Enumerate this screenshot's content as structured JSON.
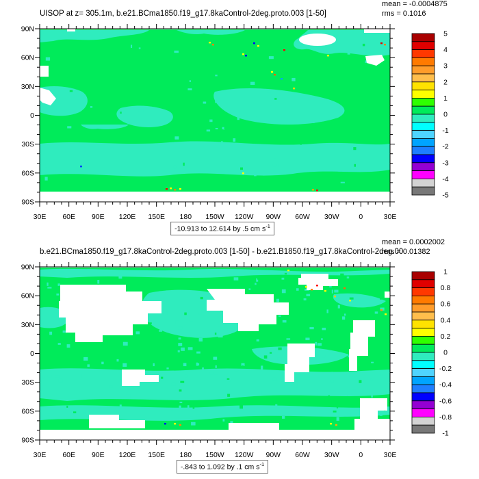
{
  "colors": {
    "ocean_green": "#00eb5a",
    "ocean_turquoise": "#2fecbe",
    "land_white": "#ffffff",
    "frame": "#000000",
    "colorbar": [
      "#a90000",
      "#e00000",
      "#ff3800",
      "#ff7a00",
      "#ff9c2a",
      "#ffbe4c",
      "#ffe200",
      "#ffff00",
      "#2fff00",
      "#00eb5a",
      "#2fecbe",
      "#00ffff",
      "#4fd4ff",
      "#00a4ff",
      "#1e7eff",
      "#0000ff",
      "#9400d3",
      "#ff00ff",
      "#d3d3d3",
      "#787878"
    ]
  },
  "axes": {
    "x_tick_labels": [
      "30E",
      "60E",
      "90E",
      "120E",
      "150E",
      "180",
      "150W",
      "120W",
      "90W",
      "60W",
      "30W",
      "0",
      "30E"
    ],
    "y_tick_labels": [
      "90N",
      "60N",
      "30N",
      "0",
      "30S",
      "60S",
      "90S"
    ]
  },
  "panels": [
    {
      "title": "UISOP at z= 305.1m, b.e21.BCma1850.f19_g17.8kaControl-2deg.proto.003 [1-50]",
      "mean_label": "mean = -0.0004875",
      "rms_label": "rms = 0.1016",
      "caption_text": "-10.913 to 12.614 by .5 cm s",
      "caption_exponent": "-1",
      "colorbar_tick_labels": [
        "5",
        "4",
        "3",
        "2",
        "1",
        "0",
        "-1",
        "-2",
        "-3",
        "-4",
        "-5"
      ]
    },
    {
      "title": "b.e21.BCma1850.f19_g17.8kaControl-2deg.proto.003 [1-50] - b.e21.B1850.f19_g17.8kaControl-2deg.00",
      "mean_label": "mean = 0.0002002",
      "rms_label": "rms = 0.01382",
      "caption_text": "-.843 to 1.092 by .1 cm s",
      "caption_exponent": "-1",
      "colorbar_tick_labels": [
        "1",
        "0.8",
        "0.6",
        "0.4",
        "0.2",
        "0",
        "-0.2",
        "-0.4",
        "-0.6",
        "-0.8",
        "-1"
      ]
    }
  ],
  "chart_data": [
    {
      "type": "heatmap",
      "subtype": "filled-contour world map (cylindrical equidistant, 30E to 30E)",
      "title": "UISOP at z= 305.1m, b.e21.BCma1850.f19_g17.8kaControl-2deg.proto.003 [1-50]",
      "variable": "UISOP",
      "depth": "z= 305.1m",
      "units": "cm s-1",
      "x": {
        "tick_labels": [
          "30E",
          "60E",
          "90E",
          "120E",
          "150E",
          "180",
          "150W",
          "120W",
          "90W",
          "60W",
          "30W",
          "0",
          "30E"
        ],
        "range_deg_east": [
          30,
          390
        ],
        "minor_tick_interval_deg": 7.5
      },
      "y": {
        "tick_labels": [
          "90N",
          "60N",
          "30N",
          "0",
          "30S",
          "60S",
          "90S"
        ],
        "range_deg_north": [
          90,
          -90
        ],
        "minor_tick_interval_deg": 10
      },
      "colorbar": {
        "position": "right",
        "tick_values": [
          5,
          4,
          3,
          2,
          1,
          0,
          -1,
          -2,
          -3,
          -4,
          -5
        ],
        "n_boxes": 20,
        "box_interval": 0.5
      },
      "field_min": -10.913,
      "field_max": 12.614,
      "contour_interval": 0.5,
      "mean": -0.0004875,
      "rms": 0.1016,
      "field_description": "Ocean mostly in 0 to 0.5 bin (green) with -0.5 to 0 turquoise patches in Arctic, tropics and Southern Ocean; white = land/missing; tiny extreme speckles (yellow/orange/red/blue) near Arctic and Antarctic coasts"
    },
    {
      "type": "heatmap",
      "subtype": "difference map (case minus control)",
      "title": "b.e21.BCma1850.f19_g17.8kaControl-2deg.proto.003 [1-50] - b.e21.B1850.f19_g17.8kaControl-2deg.00",
      "variable": "UISOP difference",
      "units": "cm s-1",
      "x": {
        "tick_labels": [
          "30E",
          "60E",
          "90E",
          "120E",
          "150E",
          "180",
          "150W",
          "120W",
          "90W",
          "60W",
          "30W",
          "0",
          "30E"
        ],
        "range_deg_east": [
          30,
          390
        ],
        "minor_tick_interval_deg": 7.5
      },
      "y": {
        "tick_labels": [
          "90N",
          "60N",
          "30N",
          "0",
          "30S",
          "60S",
          "90S"
        ],
        "range_deg_north": [
          90,
          -90
        ],
        "minor_tick_interval_deg": 10
      },
      "colorbar": {
        "position": "right",
        "tick_values": [
          1,
          0.8,
          0.6,
          0.4,
          0.2,
          0,
          -0.2,
          -0.4,
          -0.6,
          -0.8,
          -1
        ],
        "n_boxes": 20,
        "box_interval": 0.1
      },
      "field_min": -0.843,
      "field_max": 1.092,
      "contour_interval": 0.1,
      "mean": 0.0002002,
      "rms": 0.01382,
      "field_description": "Speckled mix of 0 to 0.1 (green) and -0.1 to 0 (turquoise) bins over oceans; large white masked land blobs (Asia, North America, Greenland, Atlantic margins); sparse warm-colored speckles near Arctic and Antarctic coasts"
    }
  ]
}
